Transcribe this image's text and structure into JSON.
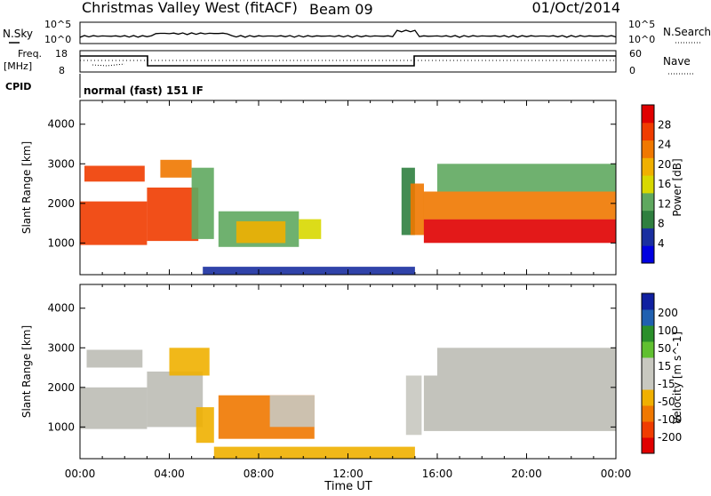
{
  "header": {
    "station": "Christmas Valley West (fitACF)",
    "beam": "Beam 09",
    "date": "01/Oct/2014"
  },
  "noise_panel": {
    "left_label": "N.Sky",
    "right_label": "N.Search",
    "left_ticks": [
      "10^5",
      "10^0"
    ],
    "right_ticks": [
      "10^5",
      "10^0"
    ]
  },
  "freq_panel": {
    "left_label_1": "Freq.",
    "left_label_2": "[MHz]",
    "right_label": "Nave",
    "left_ticks": [
      "18",
      "8"
    ],
    "right_ticks": [
      "60",
      "0"
    ]
  },
  "cpid": {
    "label": "CPID",
    "text": "normal (fast) 151 IF"
  },
  "colors": {
    "power_scale": [
      "#0000e0",
      "#1a2fa0",
      "#2f7f3f",
      "#5fa85f",
      "#d8d800",
      "#f0b000",
      "#f07800",
      "#f03c00",
      "#e00000"
    ],
    "velocity_scale": [
      "#e00000",
      "#f03c00",
      "#f07800",
      "#f0b000",
      "#c8c8c0",
      "#c8c8c0",
      "#60c030",
      "#2a8f2a",
      "#2060b0",
      "#1020a0"
    ],
    "gray_ground_scatter": "#bdbdb5"
  },
  "chart_data": [
    {
      "type": "heatmap",
      "panel": "power",
      "ylabel": "Slant Range [km]",
      "yticks": [
        "1000",
        "2000",
        "3000",
        "4000"
      ],
      "ylim": [
        200,
        4600
      ],
      "xlim_hours": [
        0,
        24
      ],
      "colorbar": {
        "label": "Power [dB]",
        "ticks": [
          "4",
          "8",
          "12",
          "16",
          "20",
          "24",
          "28"
        ],
        "range": [
          0,
          32
        ]
      },
      "regions": [
        {
          "t0": 0.0,
          "t1": 3.0,
          "r0": 950,
          "r1": 2050,
          "value": 28
        },
        {
          "t0": 0.2,
          "t1": 2.9,
          "r0": 2550,
          "r1": 2950,
          "value": 26
        },
        {
          "t0": 3.0,
          "t1": 5.3,
          "r0": 1050,
          "r1": 2400,
          "value": 25
        },
        {
          "t0": 3.6,
          "t1": 5.0,
          "r0": 2650,
          "r1": 3100,
          "value": 22
        },
        {
          "t0": 5.0,
          "t1": 6.0,
          "r0": 1100,
          "r1": 2900,
          "value": 14
        },
        {
          "t0": 6.2,
          "t1": 9.8,
          "r0": 900,
          "r1": 1800,
          "value": 12
        },
        {
          "t0": 7.0,
          "t1": 9.2,
          "r0": 1000,
          "r1": 1550,
          "value": 20
        },
        {
          "t0": 9.8,
          "t1": 10.8,
          "r0": 1100,
          "r1": 1600,
          "value": 16
        },
        {
          "t0": 14.4,
          "t1": 15.0,
          "r0": 1200,
          "r1": 2900,
          "value": 10
        },
        {
          "t0": 14.8,
          "t1": 15.4,
          "r0": 1200,
          "r1": 2500,
          "value": 24
        },
        {
          "t0": 15.4,
          "t1": 24.0,
          "r0": 1000,
          "r1": 1600,
          "value": 29
        },
        {
          "t0": 15.4,
          "t1": 24.0,
          "r0": 1600,
          "r1": 2300,
          "value": 22
        },
        {
          "t0": 16.0,
          "t1": 24.0,
          "r0": 2300,
          "r1": 3000,
          "value": 14
        },
        {
          "t0": 5.5,
          "t1": 15.0,
          "r0": 200,
          "r1": 400,
          "value": 6
        }
      ]
    },
    {
      "type": "heatmap",
      "panel": "velocity",
      "xlabel": "Time UT",
      "ylabel": "Slant Range [km]",
      "xticks": [
        "00:00",
        "04:00",
        "08:00",
        "12:00",
        "16:00",
        "20:00",
        "00:00"
      ],
      "yticks": [
        "1000",
        "2000",
        "3000",
        "4000"
      ],
      "ylim": [
        200,
        4600
      ],
      "xlim_hours": [
        0,
        24
      ],
      "colorbar": {
        "label": "Velocity [m s^-1]",
        "ticks": [
          "200",
          "100",
          "50",
          "15",
          "-15",
          "-50",
          "-100",
          "-200"
        ],
        "range": [
          -250,
          250
        ]
      },
      "regions": [
        {
          "t0": 0.0,
          "t1": 3.0,
          "r0": 950,
          "r1": 2000,
          "value": 0,
          "ground_scatter": true
        },
        {
          "t0": 0.3,
          "t1": 2.8,
          "r0": 2500,
          "r1": 2950,
          "value": 0,
          "ground_scatter": true
        },
        {
          "t0": 3.0,
          "t1": 5.5,
          "r0": 1000,
          "r1": 2400,
          "value": 0,
          "ground_scatter": true
        },
        {
          "t0": 4.0,
          "t1": 5.8,
          "r0": 2300,
          "r1": 3000,
          "value": -60
        },
        {
          "t0": 5.2,
          "t1": 6.0,
          "r0": 600,
          "r1": 1500,
          "value": -80
        },
        {
          "t0": 6.2,
          "t1": 10.5,
          "r0": 700,
          "r1": 1800,
          "value": -110
        },
        {
          "t0": 8.5,
          "t1": 10.5,
          "r0": 1000,
          "r1": 1800,
          "value": -40
        },
        {
          "t0": 14.6,
          "t1": 15.3,
          "r0": 800,
          "r1": 2300,
          "value": 30
        },
        {
          "t0": 15.4,
          "t1": 24.0,
          "r0": 900,
          "r1": 2300,
          "value": 0,
          "ground_scatter": true
        },
        {
          "t0": 16.0,
          "t1": 24.0,
          "r0": 2300,
          "r1": 3000,
          "value": 0,
          "ground_scatter": true
        },
        {
          "t0": 6.0,
          "t1": 15.0,
          "r0": 200,
          "r1": 500,
          "value": -70
        }
      ]
    }
  ]
}
